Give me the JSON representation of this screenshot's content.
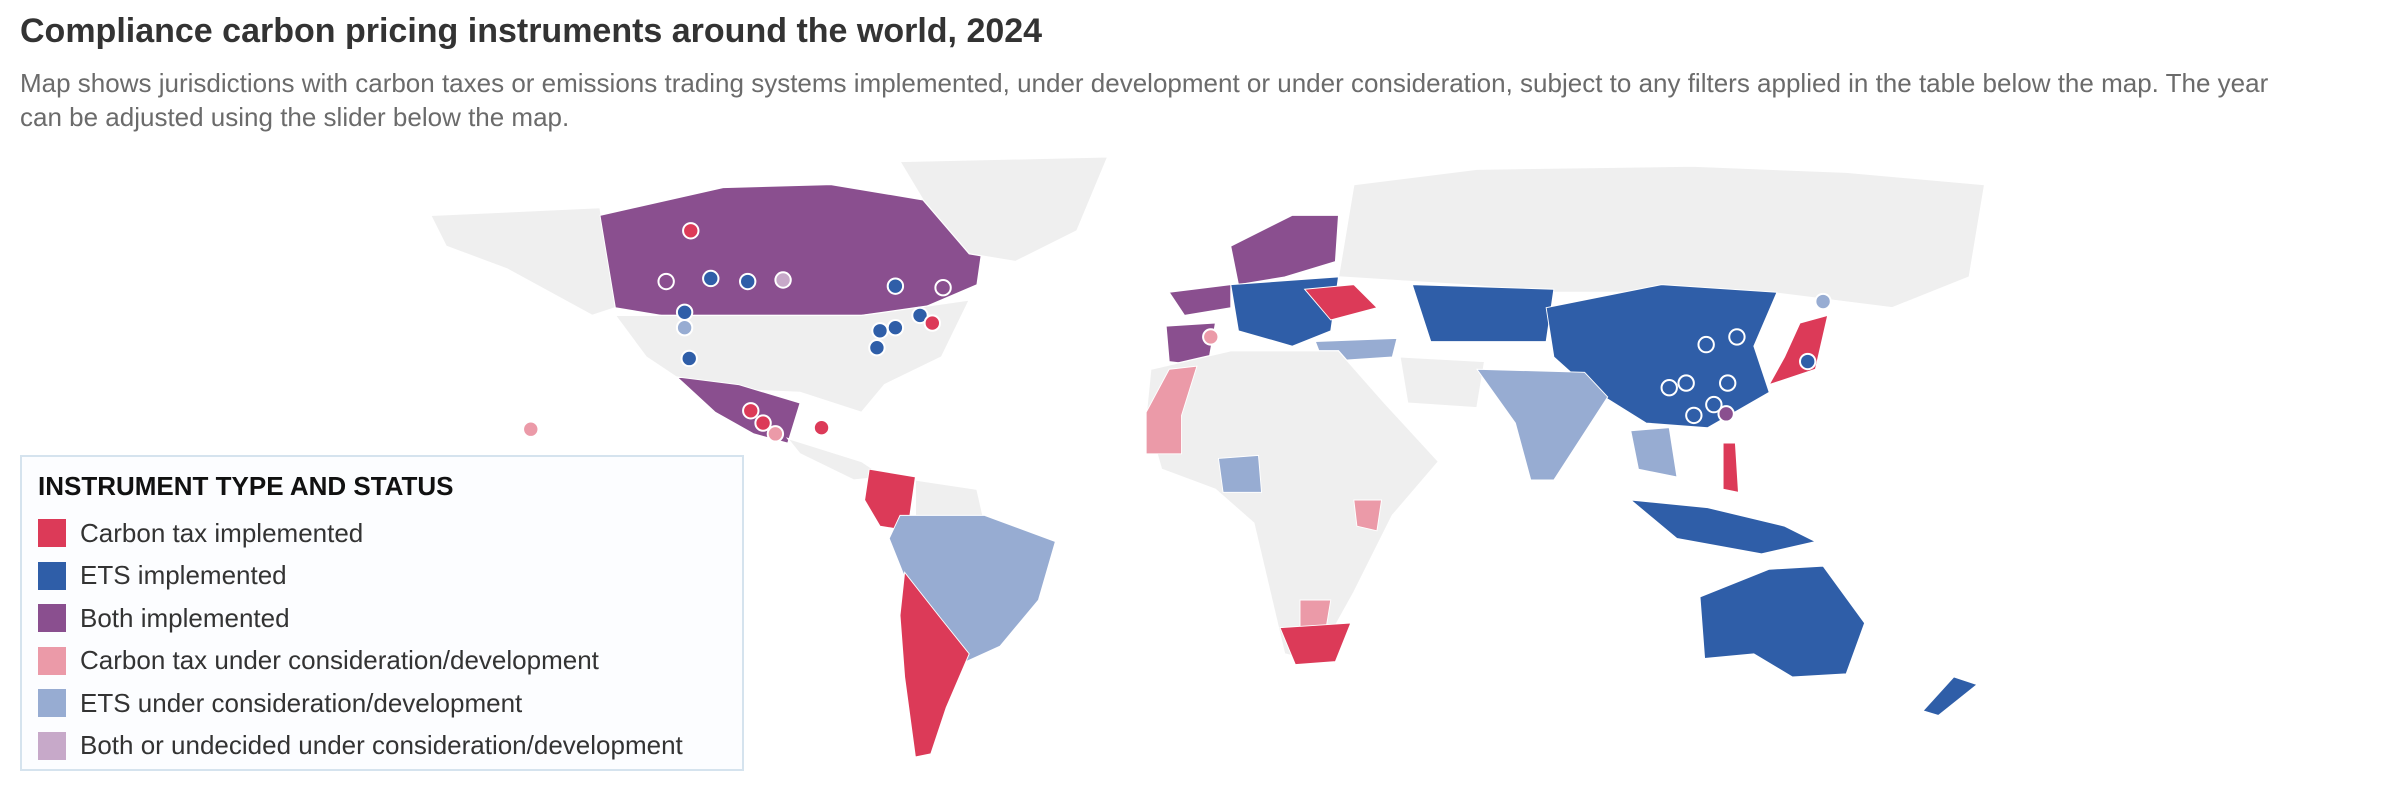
{
  "header": {
    "title": "Compliance carbon pricing instruments around the world, 2024",
    "subtitle": "Map shows jurisdictions with carbon taxes or emissions trading systems implemented, under development or under consideration, subject to any filters applied in the table below the map. The year can be adjusted using the slider below the map."
  },
  "legend": {
    "title": "INSTRUMENT TYPE AND STATUS",
    "items": [
      {
        "label": "Carbon tax implemented",
        "color": "#dc3a58"
      },
      {
        "label": "ETS implemented",
        "color": "#2f5ea8"
      },
      {
        "label": "Both implemented",
        "color": "#8a4f8f"
      },
      {
        "label": "Carbon tax under consideration/development",
        "color": "#eb9aa8"
      },
      {
        "label": "ETS under consideration/development",
        "color": "#97acd2"
      },
      {
        "label": "Both or undecided under consideration/development",
        "color": "#c7a9c9"
      }
    ]
  }
}
